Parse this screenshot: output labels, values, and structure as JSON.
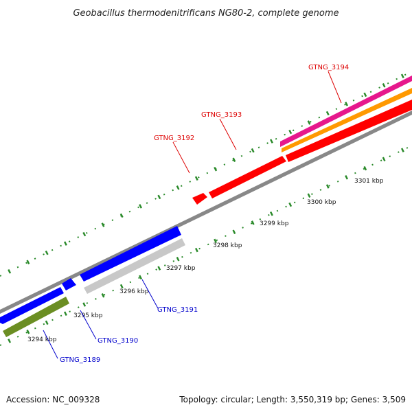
{
  "title": "Geobacillus thermodenitrificans NG80-2, complete genome",
  "footer": {
    "accession": "Accession: NC_009328",
    "stats": "Topology: circular; Length: 3,550,319 bp; Genes: 3,509"
  },
  "colors": {
    "forward_gene": "#ff0000",
    "reverse_gene": "#0000ff",
    "forward_label": "#dd0000",
    "reverse_label": "#0000cc",
    "backbone": "#888888",
    "tick": "#2a8a2a",
    "grey_feature": "#c8c8c8",
    "olive_feature": "#6b8e23",
    "orange_feature": "#ff9900",
    "magenta_feature": "#e6188c"
  },
  "scale_labels": [
    "3294 kbp",
    "3295 kbp",
    "3296 kbp",
    "3297 kbp",
    "3298 kbp",
    "3299 kbp",
    "3300 kbp",
    "3301 kbp"
  ],
  "genes": [
    {
      "name": "GTNG_3189",
      "strand": "reverse"
    },
    {
      "name": "GTNG_3190",
      "strand": "reverse"
    },
    {
      "name": "GTNG_3191",
      "strand": "reverse"
    },
    {
      "name": "GTNG_3192",
      "strand": "forward"
    },
    {
      "name": "GTNG_3193",
      "strand": "forward"
    },
    {
      "name": "GTNG_3194",
      "strand": "forward"
    }
  ]
}
